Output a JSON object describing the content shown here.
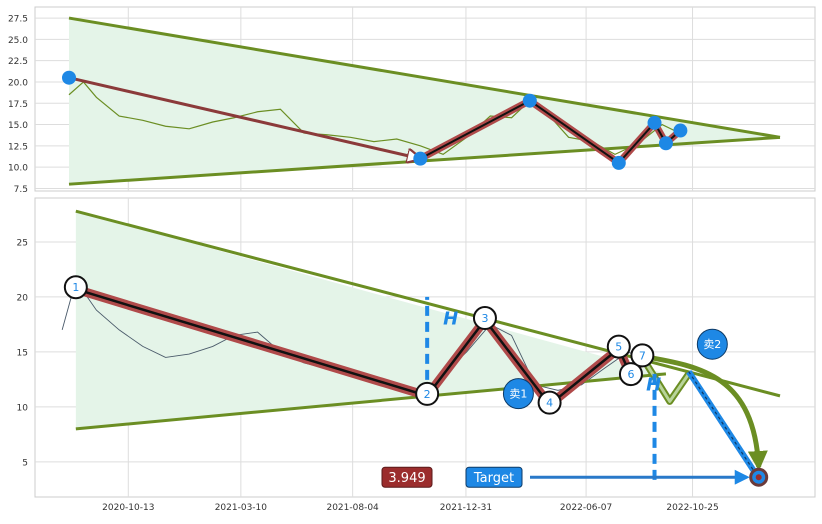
{
  "chart_data": [
    {
      "type": "line",
      "panel": "top",
      "ylim": [
        7.2,
        28.8
      ],
      "yticks": [
        "7.5",
        "10.0",
        "12.5",
        "15.0",
        "17.5",
        "20.0",
        "22.5",
        "25.0",
        "27.5"
      ],
      "grid": true,
      "series": [
        {
          "role": "price",
          "color": "#6b8e23",
          "x": [
            "2020-07-27",
            "2020-08-15",
            "2020-09-01",
            "2020-10-01",
            "2020-11-01",
            "2020-12-01",
            "2021-01-01",
            "2021-02-01",
            "2021-03-01",
            "2021-04-01",
            "2021-05-01",
            "2021-06-01",
            "2021-07-01",
            "2021-08-01",
            "2021-09-01",
            "2021-10-01",
            "2021-11-01",
            "2021-12-01",
            "2022-01-01",
            "2022-02-01",
            "2022-03-01",
            "2022-03-25",
            "2022-04-15",
            "2022-05-15",
            "2022-06-15",
            "2022-07-15",
            "2022-08-15",
            "2022-09-15",
            "2022-10-01"
          ],
          "y": [
            18.5,
            20.0,
            18.2,
            16.0,
            15.5,
            14.8,
            14.5,
            15.3,
            15.8,
            16.5,
            16.8,
            14.0,
            13.8,
            13.5,
            13.0,
            13.3,
            12.5,
            11.5,
            13.5,
            16.0,
            15.8,
            17.8,
            16.5,
            13.5,
            13.0,
            11.5,
            12.8,
            15.0,
            14.3
          ]
        }
      ],
      "trendlines": {
        "upper": {
          "start": [
            "2020-07-27",
            27.5
          ],
          "end": [
            "2023-02-17",
            13.5
          ]
        },
        "lower": {
          "start": [
            "2020-07-27",
            8.0
          ],
          "end": [
            "2023-02-17",
            13.5
          ]
        }
      },
      "arrow": {
        "start": [
          "2020-07-27",
          20.5
        ],
        "end": [
          "2021-11-01",
          11.0
        ]
      },
      "zigzag_points": [
        {
          "x": "2021-11-01",
          "y": 11.0
        },
        {
          "x": "2022-03-25",
          "y": 17.8
        },
        {
          "x": "2022-07-20",
          "y": 10.5
        },
        {
          "x": "2022-09-05",
          "y": 15.2
        },
        {
          "x": "2022-09-20",
          "y": 12.8
        },
        {
          "x": "2022-10-09",
          "y": 14.3
        }
      ]
    },
    {
      "type": "line",
      "panel": "bottom",
      "ylim": [
        1.8,
        29.0
      ],
      "yticks": [
        "5",
        "10",
        "15",
        "20",
        "25"
      ],
      "xticks": [
        "2020-10-13",
        "2021-03-10",
        "2021-08-04",
        "2021-12-31",
        "2022-06-07",
        "2022-10-25"
      ],
      "grid": true,
      "series": [
        {
          "role": "price",
          "color": "#4a5a6a",
          "x": [
            "2020-07-18",
            "2020-08-05",
            "2020-09-01",
            "2020-10-01",
            "2020-11-01",
            "2020-12-01",
            "2021-01-01",
            "2021-02-01",
            "2021-03-01",
            "2021-04-01",
            "2021-05-01",
            "2021-06-01",
            "2021-07-01",
            "2021-08-01",
            "2021-09-01",
            "2021-10-01",
            "2021-11-01",
            "2021-12-01",
            "2022-01-01",
            "2022-02-01",
            "2022-03-01",
            "2022-04-01",
            "2022-05-01",
            "2022-06-01",
            "2022-07-01",
            "2022-08-01",
            "2022-09-01"
          ],
          "y": [
            17.0,
            21.5,
            18.8,
            17.0,
            15.5,
            14.5,
            14.8,
            15.5,
            16.5,
            16.8,
            15.0,
            14.0,
            13.5,
            13.0,
            12.5,
            12.0,
            11.0,
            13.0,
            15.0,
            17.5,
            16.5,
            12.0,
            11.5,
            12.0,
            13.5,
            15.0,
            14.0
          ]
        }
      ],
      "trendlines": {
        "upper": {
          "start": [
            "2020-08-05",
            27.8
          ],
          "end": [
            "2023-02-17",
            11.0
          ]
        },
        "lower": {
          "start": [
            "2020-08-05",
            8.0
          ],
          "end": [
            "2022-09-20",
            13.0
          ]
        }
      },
      "pivots": [
        {
          "label": "1",
          "x": "2020-08-05",
          "y": 20.7
        },
        {
          "label": "2",
          "x": "2021-11-10",
          "y": 11.0
        },
        {
          "label": "3",
          "x": "2022-01-25",
          "y": 17.9
        },
        {
          "label": "4",
          "x": "2022-04-20",
          "y": 10.2
        },
        {
          "label": "5",
          "x": "2022-07-20",
          "y": 15.3
        },
        {
          "label": "6",
          "x": "2022-08-05",
          "y": 12.8
        },
        {
          "label": "7",
          "x": "2022-08-20",
          "y": 14.5
        }
      ],
      "projection": [
        {
          "x": "2022-08-20",
          "y": 14.5
        },
        {
          "x": "2022-09-25",
          "y": 10.5
        },
        {
          "x": "2022-10-20",
          "y": 13.0
        }
      ],
      "dashed_markers": [
        {
          "x": "2021-11-10",
          "y_from": 11.0,
          "y_to": 20.0
        },
        {
          "x": "2022-09-05",
          "y_from": 13.0,
          "y_to": 3.0
        }
      ],
      "h_labels": [
        {
          "text": "H",
          "x": "2021-12-01",
          "y": 17.5
        },
        {
          "text": "H",
          "x": "2022-08-25",
          "y": 11.5
        }
      ],
      "sell_markers": [
        {
          "label": "卖1",
          "x": "2022-03-10",
          "y": 11.2,
          "color": "#1e88e5"
        },
        {
          "label": "卖2",
          "x": "2022-11-20",
          "y": 15.7,
          "color": "#1e88e5"
        }
      ],
      "sell2_arrow": {
        "start": [
          "2022-10-20",
          13.2
        ],
        "end": [
          "2023-01-20",
          3.5
        ]
      },
      "big_arrow": {
        "start": [
          "2022-08-20",
          14.6
        ],
        "end": [
          "2023-01-20",
          3.8
        ]
      },
      "target": {
        "x": "2023-01-20",
        "y": 3.6
      },
      "annotations": {
        "value_badge": "3.949",
        "target_label": "Target"
      },
      "colors": {
        "trend": "#6b8e23",
        "zigzag": "#b04a4a",
        "fill": "#e4f4e8",
        "accent_blue": "#1e88e5",
        "badge_red": "#9b2d2d"
      }
    }
  ]
}
